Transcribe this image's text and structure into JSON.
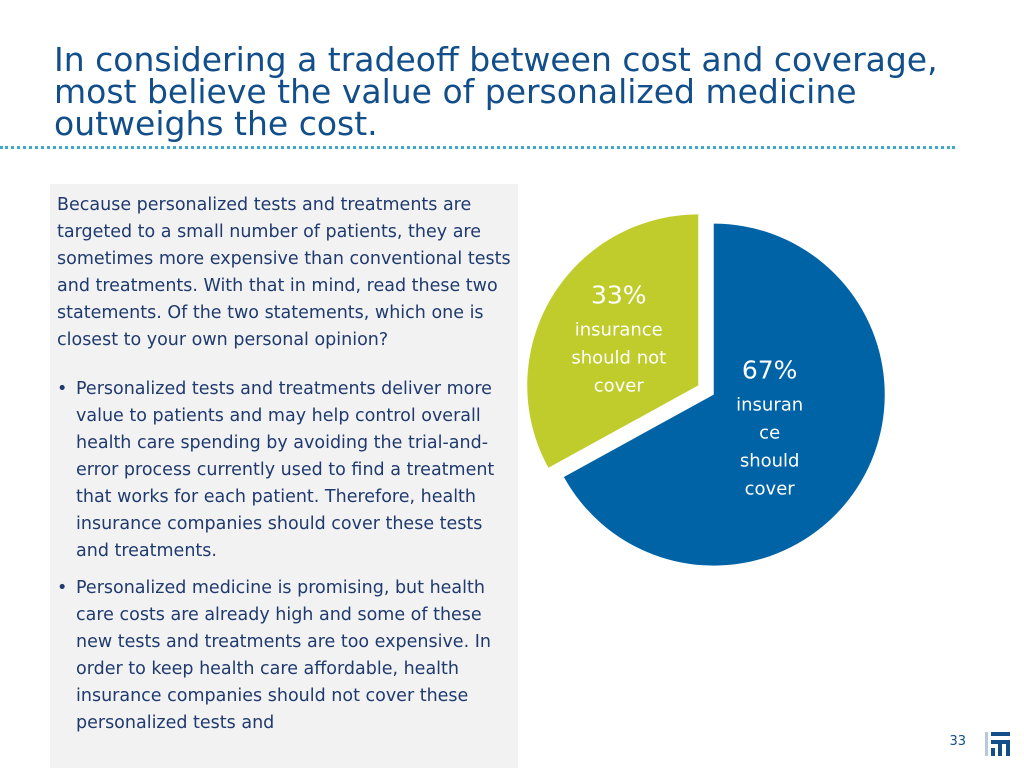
{
  "slide": {
    "title": "In considering a tradeoff between cost and coverage, most believe the value of personalized medicine outweighs the cost.",
    "question": "Because personalized tests and treatments are targeted to a small number of patients, they are sometimes more expensive than conventional tests and treatments.  With that in mind, read these two statements. Of the two statements, which one is closest to your own personal opinion?",
    "bullets": [
      "Personalized tests and treatments deliver more value to patients and may help control overall health care spending by avoiding the trial-and-error process currently used to find a treatment that works for each patient. Therefore, health insurance companies should cover these tests and treatments.",
      "Personalized medicine is promising, but health care costs are already high and some of these new tests and treatments are too expensive. In order to keep health care affordable, health insurance companies should not cover these personalized tests and"
    ],
    "bullet_glyph": "•",
    "page_number": "33"
  },
  "chart_data": {
    "type": "pie",
    "title": "",
    "slices": [
      {
        "value": 67,
        "pct_label": "67%",
        "label_lines": [
          "insuran",
          "ce",
          "should",
          "cover"
        ],
        "color": "#0063a6"
      },
      {
        "value": 33,
        "pct_label": "33%",
        "label_lines": [
          "insurance",
          "should not",
          "cover"
        ],
        "color": "#bfcc2c"
      }
    ],
    "legend": "none"
  },
  "colors": {
    "title": "#124e8a",
    "text": "#1f3a6e",
    "rule": "#3fa9c9",
    "panel": "#f2f2f2"
  },
  "icons": {
    "logo": "bar-logo-icon"
  }
}
